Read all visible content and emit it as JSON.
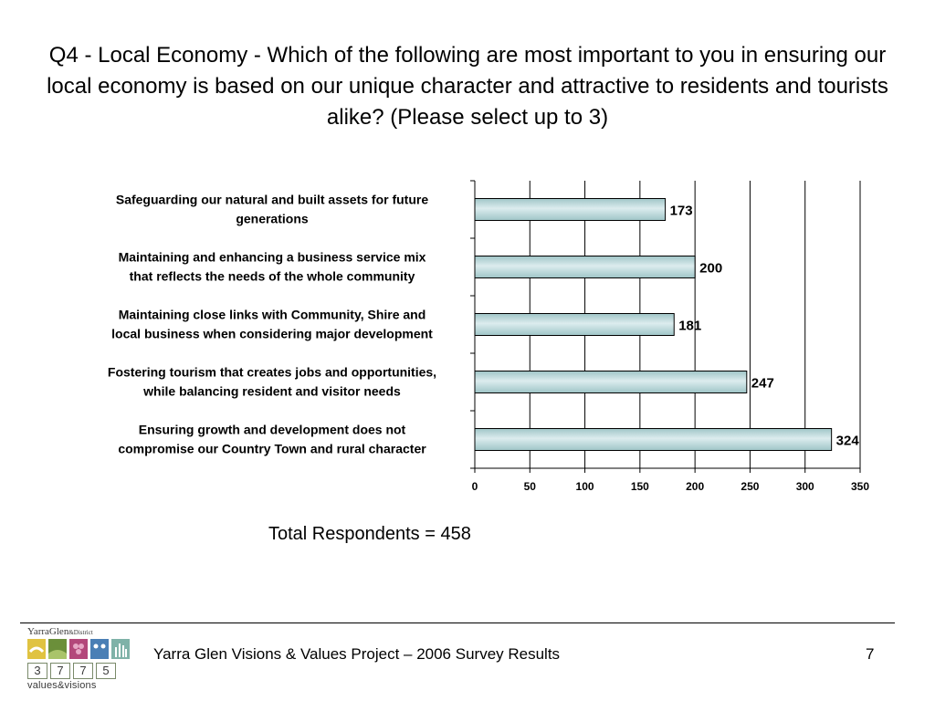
{
  "slide": {
    "title": "Q4 - Local Economy - Which of the following are most important to you in ensuring our local economy is based on our unique character and attractive to residents and tourists alike? (Please select up to 3)",
    "total_respondents": "Total Respondents = 458",
    "footer_text": "Yarra Glen Visions & Values Project – 2006 Survey Results",
    "page_number": "7"
  },
  "logo": {
    "name_main": "YarraGlen",
    "name_suffix": "&District",
    "digits": [
      "3",
      "7",
      "7",
      "5"
    ],
    "tagline": "values&visions"
  },
  "colors": {
    "bar_fill": "#9fc5c7",
    "bar_highlight": "#dcecee",
    "bar_stroke": "#000000",
    "gridline": "#000000"
  },
  "chart_data": {
    "type": "bar",
    "orientation": "horizontal",
    "categories": [
      [
        "Safeguarding our natural and built assets for future",
        "generations"
      ],
      [
        "Maintaining and enhancing a business service mix",
        "that reflects the needs of the whole community"
      ],
      [
        "Maintaining close links with Community, Shire and",
        "local business when considering major development"
      ],
      [
        "Fostering tourism that creates jobs and opportunities,",
        "while balancing resident and visitor needs"
      ],
      [
        "Ensuring growth and development does not",
        "compromise our Country Town and rural character"
      ]
    ],
    "values": [
      173,
      200,
      181,
      247,
      324
    ],
    "xlim": [
      0,
      350
    ],
    "xticks": [
      0,
      50,
      100,
      150,
      200,
      250,
      300,
      350
    ],
    "grid": "vertical",
    "data_labels": true,
    "legend": "none"
  }
}
